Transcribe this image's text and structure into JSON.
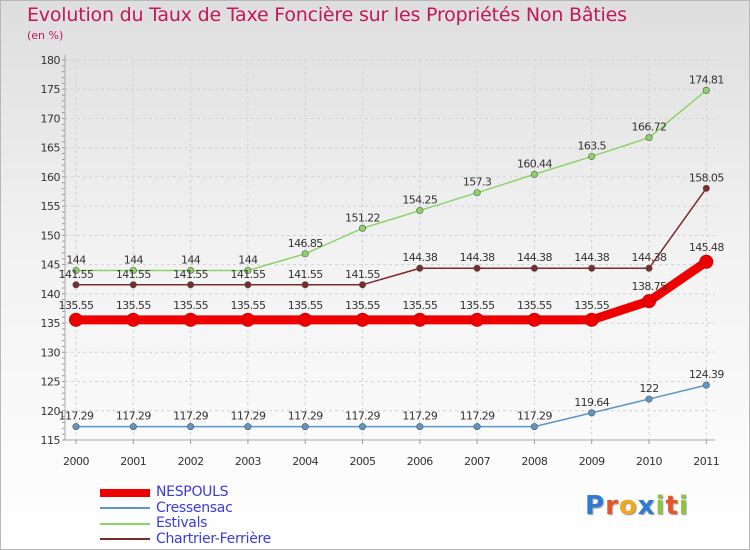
{
  "header": {
    "title": "Evolution du Taux de Taxe Foncière sur les Propriétés Non Bâties",
    "unit": "(en %)"
  },
  "logo": {
    "text": "Proxiti",
    "letter_colors": [
      "#2e7bd6",
      "#e8542a",
      "#f2a81d",
      "#2e7bd6",
      "#8cc63f",
      "#e8542a",
      "#8cc63f"
    ]
  },
  "chart_data": {
    "type": "line",
    "title": "Evolution du Taux de Taxe Foncière sur les Propriétés Non Bâties",
    "ylabel": "(en %)",
    "xlabel": "",
    "ylim": [
      115,
      180
    ],
    "yticks": [
      "115",
      "120",
      "125",
      "130",
      "135",
      "140",
      "145",
      "150",
      "155",
      "160",
      "165",
      "170",
      "175",
      "180"
    ],
    "x": [
      "2000",
      "2001",
      "2002",
      "2003",
      "2004",
      "2005",
      "2006",
      "2007",
      "2008",
      "2009",
      "2010",
      "2011"
    ],
    "grid": true,
    "series": [
      {
        "name": "Cressensac",
        "color": "#5b97c9",
        "values": [
          117.29,
          117.29,
          117.29,
          117.29,
          117.29,
          117.29,
          117.29,
          117.29,
          117.29,
          119.64,
          122,
          124.39
        ],
        "labels": [
          "117.29",
          "117.29",
          "117.29",
          "117.29",
          "117.29",
          "117.29",
          "117.29",
          "117.29",
          "117.29",
          "119.64",
          "122",
          "124.39"
        ]
      },
      {
        "name": "Estivals",
        "color": "#8cd46a",
        "values": [
          144,
          144,
          144,
          144,
          146.85,
          151.22,
          154.25,
          157.3,
          160.44,
          163.5,
          166.72,
          174.81
        ],
        "labels": [
          "144",
          "144",
          "144",
          "144",
          "146.85",
          "151.22",
          "154.25",
          "157.3",
          "160.44",
          "163.5",
          "166.72",
          "174.81"
        ]
      },
      {
        "name": "Chartrier-Ferrière",
        "color": "#7a2b2b",
        "values": [
          141.55,
          141.55,
          141.55,
          141.55,
          141.55,
          141.55,
          144.38,
          144.38,
          144.38,
          144.38,
          144.38,
          158.05
        ],
        "labels": [
          "141.55",
          "141.55",
          "141.55",
          "141.55",
          "141.55",
          "141.55",
          "144.38",
          "144.38",
          "144.38",
          "144.38",
          "144.38",
          "158.05"
        ]
      },
      {
        "name": "NESPOULS",
        "color": "#ee0000",
        "values": [
          135.55,
          135.55,
          135.55,
          135.55,
          135.55,
          135.55,
          135.55,
          135.55,
          135.55,
          135.55,
          138.75,
          145.48
        ],
        "labels": [
          "135.55",
          "135.55",
          "135.55",
          "135.55",
          "135.55",
          "135.55",
          "135.55",
          "135.55",
          "135.55",
          "135.55",
          "138.75",
          "145.48"
        ]
      }
    ],
    "legend": {
      "position": "bottom-left",
      "order": [
        3,
        0,
        1,
        2
      ],
      "label_colors": [
        "#3b3bdc",
        "#3b3bdc",
        "#3b3bdc",
        "#3b3bdc"
      ]
    }
  }
}
